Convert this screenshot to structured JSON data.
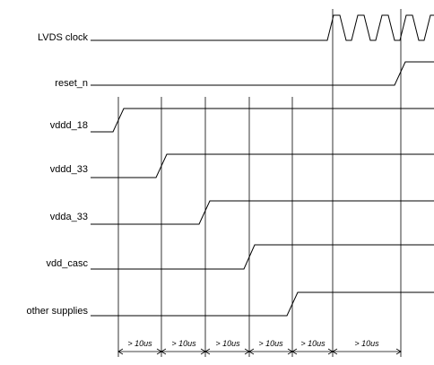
{
  "signals": [
    {
      "name": "LVDS clock"
    },
    {
      "name": "reset_n"
    },
    {
      "name": "vddd_18"
    },
    {
      "name": "vddd_33"
    },
    {
      "name": "vdda_33"
    },
    {
      "name": "vdd_casc"
    },
    {
      "name": "other supplies"
    }
  ],
  "intervals": [
    {
      "label": "> 10us"
    },
    {
      "label": "> 10us"
    },
    {
      "label": "> 10us"
    },
    {
      "label": "> 10us"
    },
    {
      "label": "> 10us"
    },
    {
      "label": "> 10us"
    }
  ]
}
